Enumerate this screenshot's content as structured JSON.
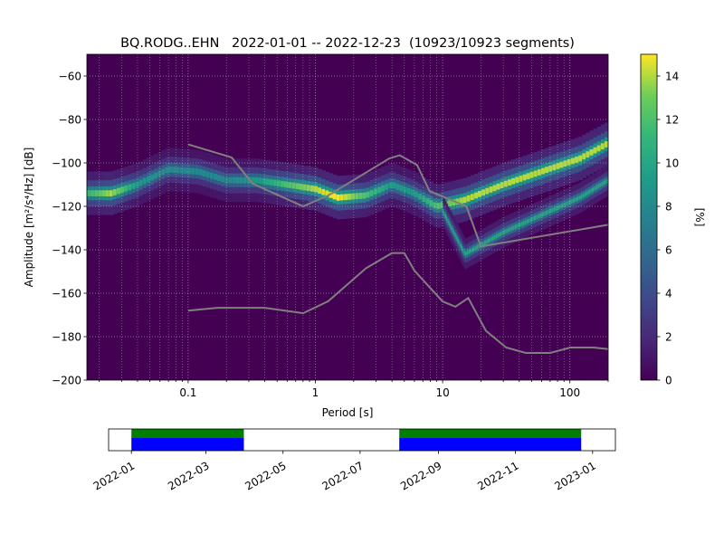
{
  "chart_data": [
    {
      "type": "heatmap",
      "title": "BQ.RODG..EHN   2022-01-01 -- 2022-12-23  (10923/10923 segments)",
      "xlabel": "Period [s]",
      "ylabel": "Amplitude [m²/s⁴/Hz] [dB]",
      "x_scale": "log",
      "xlim": [
        0.016,
        200
      ],
      "ylim": [
        -200,
        -50
      ],
      "xticks": [
        0.1,
        1,
        10,
        100
      ],
      "xtick_labels": [
        "0.1",
        "1",
        "10",
        "100"
      ],
      "yticks": [
        -60,
        -80,
        -100,
        -120,
        -140,
        -160,
        -180,
        -200
      ],
      "ytick_labels": [
        "−60",
        "−80",
        "−100",
        "−120",
        "−140",
        "−160",
        "−180",
        "−200"
      ],
      "grid": "dotted",
      "colormap": "viridis",
      "colorbar": {
        "label": "[%]",
        "range": [
          0,
          15
        ],
        "ticks": [
          0,
          2,
          4,
          6,
          8,
          10,
          12,
          14
        ],
        "tick_labels": [
          "0",
          "2",
          "4",
          "6",
          "8",
          "10",
          "12",
          "14"
        ]
      },
      "background_color": "#440154",
      "density_ridge": [
        {
          "period": 0.016,
          "db": -114,
          "pct": 11
        },
        {
          "period": 0.025,
          "db": -114,
          "pct": 14
        },
        {
          "period": 0.04,
          "db": -110,
          "pct": 9
        },
        {
          "period": 0.07,
          "db": -103,
          "pct": 8
        },
        {
          "period": 0.12,
          "db": -104,
          "pct": 8
        },
        {
          "period": 0.2,
          "db": -108,
          "pct": 8
        },
        {
          "period": 0.35,
          "db": -108,
          "pct": 9
        },
        {
          "period": 0.6,
          "db": -110,
          "pct": 12
        },
        {
          "period": 1.0,
          "db": -112,
          "pct": 14
        },
        {
          "period": 1.5,
          "db": -116,
          "pct": 15
        },
        {
          "period": 2.5,
          "db": -115,
          "pct": 12
        },
        {
          "period": 4.0,
          "db": -110,
          "pct": 9
        },
        {
          "period": 6.0,
          "db": -114,
          "pct": 9
        },
        {
          "period": 9.0,
          "db": -120,
          "pct": 12
        },
        {
          "period": 15.0,
          "db": -117,
          "pct": 14
        },
        {
          "period": 30.0,
          "db": -110,
          "pct": 14
        },
        {
          "period": 60.0,
          "db": -104,
          "pct": 14
        },
        {
          "period": 120.0,
          "db": -98,
          "pct": 14
        },
        {
          "period": 200.0,
          "db": -91,
          "pct": 14
        }
      ],
      "density_ridge_lower": [
        {
          "period": 10.0,
          "db": -122,
          "pct": 10
        },
        {
          "period": 15.0,
          "db": -142,
          "pct": 10
        },
        {
          "period": 30.0,
          "db": -132,
          "pct": 10
        },
        {
          "period": 60.0,
          "db": -124,
          "pct": 10
        },
        {
          "period": 120.0,
          "db": -116,
          "pct": 10
        },
        {
          "period": 200.0,
          "db": -108,
          "pct": 10
        }
      ],
      "series": [
        {
          "name": "",
          "color": "#808080",
          "points": [
            [
              0.1,
              -91.5
            ],
            [
              0.22,
              -97.5
            ],
            [
              0.32,
              -109.5
            ],
            [
              0.8,
              -120
            ],
            [
              1.26,
              -115
            ],
            [
              3.8,
              -98
            ],
            [
              4.6,
              -96.5
            ],
            [
              6.3,
              -101
            ],
            [
              7.9,
              -113
            ],
            [
              15.4,
              -120
            ],
            [
              20,
              -138.5
            ],
            [
              200,
              -128.5
            ]
          ]
        },
        {
          "name": "",
          "color": "#808080",
          "points": [
            [
              0.1,
              -168
            ],
            [
              0.17,
              -166.7
            ],
            [
              0.4,
              -166.7
            ],
            [
              0.8,
              -169.2
            ],
            [
              1.26,
              -163.7
            ],
            [
              2.5,
              -148.5
            ],
            [
              4.0,
              -141.5
            ],
            [
              5.0,
              -141.5
            ],
            [
              6.0,
              -149.6
            ],
            [
              10,
              -163.8
            ],
            [
              12.6,
              -166.2
            ],
            [
              15.9,
              -162.2
            ],
            [
              21.9,
              -177.3
            ],
            [
              31.6,
              -185
            ],
            [
              45,
              -187.5
            ],
            [
              70,
              -187.5
            ],
            [
              101,
              -185
            ],
            [
              154,
              -185
            ],
            [
              200,
              -185.7
            ]
          ]
        }
      ]
    },
    {
      "type": "timeline",
      "x_start": "2022-01-01",
      "x_end": "2023-01-01",
      "xtick_labels": [
        "2022-01",
        "2022-03",
        "2022-05",
        "2022-07",
        "2022-09",
        "2022-11",
        "2023-01"
      ],
      "xtick_dates": [
        "2022-01-01",
        "2022-03-01",
        "2022-05-01",
        "2022-07-01",
        "2022-09-01",
        "2022-11-01",
        "2023-01-01"
      ],
      "segments": [
        {
          "start": "2022-01-01",
          "end": "2022-03-31"
        },
        {
          "start": "2022-08-01",
          "end": "2022-12-23"
        }
      ],
      "colors": {
        "data": "#0000ff",
        "used": "#008000"
      }
    }
  ]
}
